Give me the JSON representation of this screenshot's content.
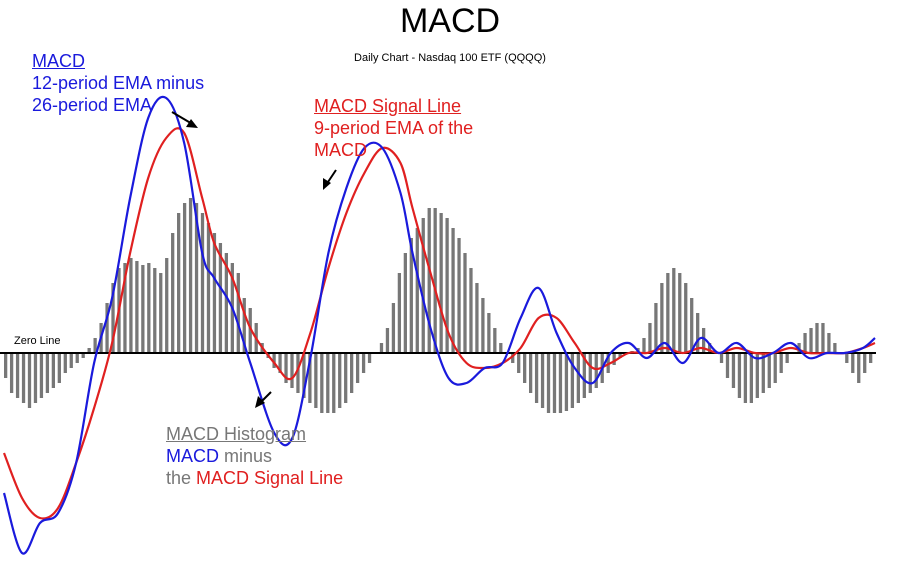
{
  "header": {
    "title": "MACD",
    "subtitle": "Daily Chart - Nasdaq 100 ETF (QQQQ)"
  },
  "annotations": {
    "macd": {
      "heading": "MACD",
      "line1": "12-period EMA minus",
      "line2": "26-period EMA"
    },
    "signal": {
      "heading": "MACD Signal Line",
      "line1": "9-period EMA of the",
      "line2": "MACD"
    },
    "histogram": {
      "heading": "MACD Histogram",
      "line1_a": "MACD",
      "line1_b": " minus",
      "line2_a": "the ",
      "line2_b": "MACD Signal Line"
    },
    "zero_line": "Zero Line"
  },
  "colors": {
    "macd": "#1a1adc",
    "signal": "#e02020",
    "histogram": "#777777",
    "zero_line": "#000000"
  },
  "chart_data": {
    "type": "line",
    "title": "MACD",
    "subtitle": "Daily Chart - Nasdaq 100 ETF (QQQQ)",
    "x_count": 146,
    "ylim": [
      -2.2,
      2.9
    ],
    "grid": false,
    "series": [
      {
        "name": "MACD",
        "kind": "line",
        "x": [
          0,
          3,
          6,
          9,
          12,
          15,
          18,
          21,
          24,
          27,
          30,
          33,
          35,
          38,
          41,
          45,
          48,
          51,
          54,
          57,
          60,
          63,
          66,
          68,
          71,
          74,
          77,
          80,
          83,
          86,
          89,
          92,
          95,
          98,
          101,
          104,
          107,
          110,
          113,
          116,
          119,
          122,
          125,
          128,
          131,
          134,
          137,
          140,
          143,
          145
        ],
        "y": [
          -1.4,
          -2.0,
          -1.7,
          -1.6,
          -1.1,
          -0.1,
          0.55,
          1.55,
          2.35,
          2.55,
          2.1,
          1.0,
          0.75,
          0.45,
          -0.1,
          -0.8,
          -0.85,
          -0.05,
          1.0,
          1.65,
          2.05,
          2.05,
          1.6,
          1.0,
          0.25,
          -0.25,
          -0.3,
          -0.15,
          -0.1,
          0.35,
          0.65,
          0.2,
          -0.15,
          -0.3,
          0.0,
          0.1,
          -0.05,
          0.1,
          -0.1,
          0.15,
          0.0,
          0.1,
          -0.05,
          0.0,
          0.1,
          -0.05,
          0.0,
          0.0,
          0.05,
          0.15
        ]
      },
      {
        "name": "MACD Signal Line",
        "kind": "line",
        "x": [
          0,
          3,
          6,
          9,
          12,
          15,
          18,
          21,
          24,
          27,
          30,
          33,
          35,
          38,
          41,
          45,
          48,
          51,
          54,
          57,
          60,
          63,
          66,
          68,
          71,
          74,
          77,
          80,
          83,
          86,
          89,
          92,
          95,
          98,
          101,
          104,
          107,
          110,
          113,
          116,
          119,
          122,
          125,
          128,
          131,
          134,
          137,
          140,
          143,
          145
        ],
        "y": [
          -1.0,
          -1.45,
          -1.65,
          -1.55,
          -1.1,
          -0.55,
          0.1,
          1.0,
          1.75,
          2.15,
          2.2,
          1.55,
          1.1,
          0.75,
          0.25,
          -0.1,
          -0.25,
          0.2,
          0.85,
          1.4,
          1.8,
          2.05,
          1.9,
          1.45,
          0.8,
          0.2,
          -0.1,
          -0.15,
          -0.1,
          0.05,
          0.35,
          0.35,
          0.1,
          -0.15,
          -0.1,
          0.0,
          0.0,
          0.05,
          0.0,
          0.05,
          0.0,
          0.05,
          0.0,
          0.0,
          0.05,
          0.0,
          0.0,
          0.0,
          0.05,
          0.1
        ]
      },
      {
        "name": "MACD Histogram",
        "kind": "bar",
        "values": [
          -0.25,
          -0.4,
          -0.45,
          -0.5,
          -0.55,
          -0.5,
          -0.45,
          -0.4,
          -0.35,
          -0.3,
          -0.2,
          -0.15,
          -0.1,
          -0.05,
          0.05,
          0.15,
          0.3,
          0.5,
          0.7,
          0.85,
          0.9,
          0.95,
          0.92,
          0.88,
          0.9,
          0.85,
          0.8,
          0.95,
          1.2,
          1.4,
          1.5,
          1.55,
          1.5,
          1.4,
          1.3,
          1.2,
          1.1,
          1.0,
          0.9,
          0.8,
          0.55,
          0.45,
          0.3,
          0.1,
          -0.05,
          -0.15,
          -0.2,
          -0.3,
          -0.35,
          -0.4,
          -0.45,
          -0.5,
          -0.55,
          -0.6,
          -0.6,
          -0.6,
          -0.55,
          -0.5,
          -0.4,
          -0.3,
          -0.2,
          -0.1,
          0.0,
          0.1,
          0.25,
          0.5,
          0.8,
          1.0,
          1.15,
          1.25,
          1.35,
          1.45,
          1.45,
          1.4,
          1.35,
          1.25,
          1.15,
          1.0,
          0.85,
          0.7,
          0.55,
          0.4,
          0.25,
          0.1,
          0.0,
          -0.1,
          -0.2,
          -0.3,
          -0.4,
          -0.5,
          -0.55,
          -0.6,
          -0.6,
          -0.6,
          -0.58,
          -0.55,
          -0.5,
          -0.45,
          -0.4,
          -0.35,
          -0.3,
          -0.2,
          -0.12,
          -0.05,
          0.0,
          0.02,
          0.05,
          0.15,
          0.3,
          0.5,
          0.7,
          0.8,
          0.85,
          0.8,
          0.7,
          0.55,
          0.4,
          0.25,
          0.1,
          0.0,
          -0.1,
          -0.25,
          -0.35,
          -0.45,
          -0.5,
          -0.5,
          -0.45,
          -0.4,
          -0.35,
          -0.3,
          -0.2,
          -0.1,
          0.0,
          0.1,
          0.2,
          0.25,
          0.3,
          0.3,
          0.2,
          0.1,
          0.0,
          -0.1,
          -0.2,
          -0.3,
          -0.2,
          -0.1
        ]
      }
    ],
    "zero_line": 0
  }
}
